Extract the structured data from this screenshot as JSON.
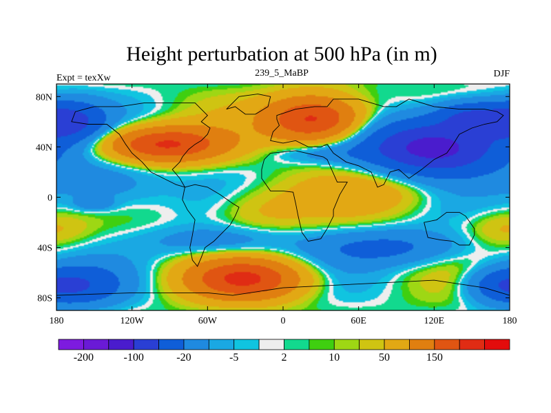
{
  "chart_data": {
    "type": "heatmap",
    "title": "Height perturbation at 500 hPa (in m)",
    "left_string": "Expt = texXw",
    "center_string": "239_5_MaBP",
    "right_string": "DJF",
    "x_range": [
      -180,
      180
    ],
    "y_range": [
      -90,
      90
    ],
    "x_ticks": [
      {
        "value": -180,
        "label": "180"
      },
      {
        "value": -120,
        "label": "120W"
      },
      {
        "value": -60,
        "label": "60W"
      },
      {
        "value": 0,
        "label": "0"
      },
      {
        "value": 60,
        "label": "60E"
      },
      {
        "value": 120,
        "label": "120E"
      },
      {
        "value": 180,
        "label": "180"
      }
    ],
    "y_ticks": [
      {
        "value": 80,
        "label": "80N"
      },
      {
        "value": 40,
        "label": "40N"
      },
      {
        "value": 0,
        "label": "0"
      },
      {
        "value": -40,
        "label": "40S"
      },
      {
        "value": -80,
        "label": "80S"
      }
    ],
    "colorbar": {
      "colors": [
        "#7d1bdf",
        "#6a1ad6",
        "#4a1ccd",
        "#2a3fd4",
        "#0f5ed8",
        "#1f8ae0",
        "#1aa8e3",
        "#10c4e0",
        "#eeeeee",
        "#12d98e",
        "#3fcf10",
        "#9ed714",
        "#cfc412",
        "#e2a814",
        "#e07f10",
        "#e05512",
        "#e02c14",
        "#e30c0c"
      ],
      "labels": [
        {
          "after_box": 1,
          "label": "-200"
        },
        {
          "after_box": 3,
          "label": "-100"
        },
        {
          "after_box": 5,
          "label": "-20"
        },
        {
          "after_box": 7,
          "label": "-5"
        },
        {
          "after_box": 9,
          "label": "2"
        },
        {
          "after_box": 11,
          "label": "10"
        },
        {
          "after_box": 13,
          "label": "50"
        },
        {
          "after_box": 15,
          "label": "150"
        }
      ]
    },
    "field_centers": [
      {
        "lon": 25,
        "lat": 62,
        "lonR": 38,
        "latR": 18,
        "value": 170
      },
      {
        "lon": -95,
        "lat": 42,
        "lonR": 48,
        "latR": 14,
        "value": 160
      },
      {
        "lon": -30,
        "lat": -65,
        "lonR": 45,
        "latR": 16,
        "value": 150
      },
      {
        "lon": 75,
        "lat": 5,
        "lonR": 55,
        "latR": 18,
        "value": 35
      },
      {
        "lon": -20,
        "lat": -10,
        "lonR": 40,
        "latR": 20,
        "value": 30
      },
      {
        "lon": 175,
        "lat": -25,
        "lonR": 30,
        "latR": 14,
        "value": 25
      },
      {
        "lon": -140,
        "lat": 10,
        "lonR": 45,
        "latR": 22,
        "value": -45
      },
      {
        "lon": -150,
        "lat": -5,
        "lonR": 14,
        "latR": 5,
        "value": -40
      },
      {
        "lon": 120,
        "lat": 40,
        "lonR": 55,
        "latR": 22,
        "value": -180
      },
      {
        "lon": -170,
        "lat": 60,
        "lonR": 28,
        "latR": 16,
        "value": -110
      },
      {
        "lon": -160,
        "lat": -70,
        "lonR": 32,
        "latR": 16,
        "value": -80
      },
      {
        "lon": 170,
        "lat": -70,
        "lonR": 26,
        "latR": 14,
        "value": -70
      },
      {
        "lon": 85,
        "lat": -40,
        "lonR": 60,
        "latR": 14,
        "value": -60
      },
      {
        "lon": -50,
        "lat": -35,
        "lonR": 55,
        "latR": 12,
        "value": -40
      },
      {
        "lon": 30,
        "lat": 35,
        "lonR": 40,
        "latR": 8,
        "value": -30
      },
      {
        "lon": 150,
        "lat": 65,
        "lonR": 30,
        "latR": 12,
        "value": -90
      }
    ],
    "coastlines": [
      [
        [
          -45,
          70
        ],
        [
          -35,
          80
        ],
        [
          -20,
          82
        ],
        [
          -10,
          80
        ],
        [
          -12,
          72
        ],
        [
          -22,
          66
        ],
        [
          -30,
          66
        ],
        [
          -38,
          72
        ]
      ],
      [
        [
          -5,
          65
        ],
        [
          10,
          70
        ],
        [
          25,
          72
        ],
        [
          35,
          72
        ],
        [
          40,
          78
        ],
        [
          60,
          78
        ],
        [
          80,
          72
        ],
        [
          90,
          72
        ],
        [
          100,
          78
        ],
        [
          120,
          72
        ],
        [
          140,
          70
        ],
        [
          160,
          70
        ],
        [
          170,
          68
        ],
        [
          175,
          65
        ],
        [
          170,
          60
        ],
        [
          160,
          58
        ],
        [
          150,
          55
        ],
        [
          140,
          50
        ],
        [
          135,
          42
        ],
        [
          130,
          35
        ],
        [
          120,
          30
        ],
        [
          110,
          22
        ],
        [
          100,
          15
        ],
        [
          92,
          22
        ],
        [
          85,
          20
        ],
        [
          80,
          10
        ],
        [
          75,
          8
        ],
        [
          70,
          20
        ],
        [
          60,
          25
        ],
        [
          50,
          28
        ],
        [
          40,
          35
        ],
        [
          35,
          42
        ],
        [
          30,
          40
        ],
        [
          20,
          40
        ],
        [
          10,
          45
        ],
        [
          0,
          43
        ],
        [
          -10,
          45
        ],
        [
          -8,
          52
        ],
        [
          -3,
          57
        ],
        [
          -5,
          62
        ]
      ],
      [
        [
          -60,
          65
        ],
        [
          -70,
          75
        ],
        [
          -90,
          75
        ],
        [
          -110,
          75
        ],
        [
          -130,
          72
        ],
        [
          -150,
          72
        ],
        [
          -165,
          68
        ],
        [
          -168,
          60
        ],
        [
          -155,
          58
        ],
        [
          -140,
          58
        ],
        [
          -130,
          50
        ],
        [
          -125,
          42
        ],
        [
          -120,
          35
        ],
        [
          -112,
          28
        ],
        [
          -105,
          20
        ],
        [
          -95,
          15
        ],
        [
          -85,
          10
        ],
        [
          -78,
          8
        ],
        [
          -82,
          15
        ],
        [
          -88,
          22
        ],
        [
          -82,
          28
        ],
        [
          -80,
          32
        ],
        [
          -75,
          38
        ],
        [
          -70,
          42
        ],
        [
          -65,
          45
        ],
        [
          -60,
          50
        ],
        [
          -58,
          55
        ],
        [
          -65,
          60
        ]
      ],
      [
        [
          -78,
          8
        ],
        [
          -70,
          10
        ],
        [
          -60,
          8
        ],
        [
          -50,
          2
        ],
        [
          -40,
          -5
        ],
        [
          -35,
          -8
        ],
        [
          -38,
          -15
        ],
        [
          -42,
          -22
        ],
        [
          -48,
          -28
        ],
        [
          -55,
          -35
        ],
        [
          -62,
          -40
        ],
        [
          -65,
          -48
        ],
        [
          -68,
          -55
        ],
        [
          -72,
          -50
        ],
        [
          -74,
          -40
        ],
        [
          -72,
          -30
        ],
        [
          -70,
          -18
        ],
        [
          -76,
          -10
        ],
        [
          -80,
          -2
        ]
      ],
      [
        [
          -15,
          30
        ],
        [
          -10,
          35
        ],
        [
          10,
          37
        ],
        [
          32,
          32
        ],
        [
          35,
          30
        ],
        [
          43,
          12
        ],
        [
          51,
          12
        ],
        [
          45,
          2
        ],
        [
          40,
          -10
        ],
        [
          40,
          -15
        ],
        [
          35,
          -25
        ],
        [
          30,
          -33
        ],
        [
          20,
          -35
        ],
        [
          15,
          -28
        ],
        [
          12,
          -15
        ],
        [
          10,
          -5
        ],
        [
          8,
          4
        ],
        [
          0,
          5
        ],
        [
          -10,
          5
        ],
        [
          -17,
          15
        ],
        [
          -17,
          22
        ]
      ],
      [
        [
          112,
          -20
        ],
        [
          115,
          -32
        ],
        [
          125,
          -34
        ],
        [
          135,
          -35
        ],
        [
          140,
          -38
        ],
        [
          148,
          -38
        ],
        [
          152,
          -30
        ],
        [
          152,
          -25
        ],
        [
          145,
          -15
        ],
        [
          140,
          -12
        ],
        [
          135,
          -12
        ],
        [
          130,
          -12
        ],
        [
          122,
          -18
        ]
      ],
      [
        [
          -180,
          -78
        ],
        [
          -120,
          -76
        ],
        [
          -60,
          -76
        ],
        [
          -40,
          -78
        ],
        [
          0,
          -72
        ],
        [
          40,
          -70
        ],
        [
          80,
          -68
        ],
        [
          120,
          -66
        ],
        [
          160,
          -72
        ],
        [
          180,
          -78
        ],
        [
          180,
          -90
        ],
        [
          -180,
          -90
        ]
      ]
    ]
  }
}
